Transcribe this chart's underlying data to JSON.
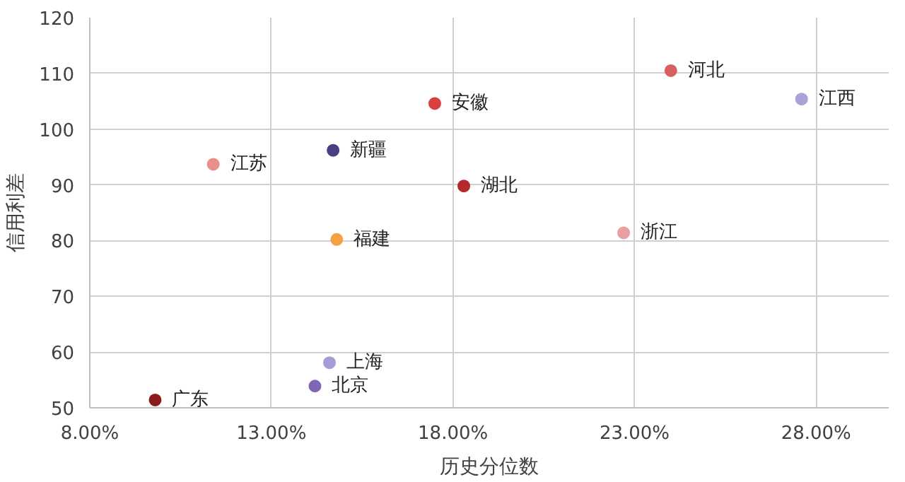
{
  "chart_data": {
    "type": "scatter",
    "xlabel": "历史分位数",
    "ylabel": "信用利差",
    "xlim": [
      8,
      30
    ],
    "ylim": [
      50,
      120
    ],
    "xticks": [
      {
        "value": 8,
        "label": "8.00%"
      },
      {
        "value": 13,
        "label": "13.00%"
      },
      {
        "value": 18,
        "label": "18.00%"
      },
      {
        "value": 23,
        "label": "23.00%"
      },
      {
        "value": 28,
        "label": "28.00%"
      }
    ],
    "yticks": [
      50,
      60,
      70,
      80,
      90,
      100,
      110,
      120
    ],
    "grid": true,
    "legend": false,
    "marker": "circle",
    "series": [
      {
        "name": "广东",
        "color": "#8b1a1a",
        "x": [
          9.8
        ],
        "values": [
          51.4
        ]
      },
      {
        "name": "江苏",
        "color": "#e8908a",
        "x": [
          11.4
        ],
        "values": [
          93.7
        ]
      },
      {
        "name": "北京",
        "color": "#7e67b5",
        "x": [
          14.2
        ],
        "values": [
          53.9
        ]
      },
      {
        "name": "上海",
        "color": "#a99bd6",
        "x": [
          14.6
        ],
        "values": [
          58.1
        ]
      },
      {
        "name": "新疆",
        "color": "#4b3f7f",
        "x": [
          14.7
        ],
        "values": [
          96.2
        ]
      },
      {
        "name": "福建",
        "color": "#f4a044",
        "x": [
          14.8
        ],
        "values": [
          80.2
        ]
      },
      {
        "name": "安徽",
        "color": "#d94040",
        "x": [
          17.5
        ],
        "values": [
          104.6
        ]
      },
      {
        "name": "湖北",
        "color": "#b22a2a",
        "x": [
          18.3
        ],
        "values": [
          89.8
        ]
      },
      {
        "name": "浙江",
        "color": "#e8a0a0",
        "x": [
          22.7
        ],
        "values": [
          81.4
        ]
      },
      {
        "name": "河北",
        "color": "#d96060",
        "x": [
          24.0
        ],
        "values": [
          110.5
        ]
      },
      {
        "name": "江西",
        "color": "#a8a4d8",
        "x": [
          27.6
        ],
        "values": [
          105.4
        ]
      }
    ]
  }
}
